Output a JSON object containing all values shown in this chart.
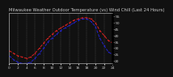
{
  "title": "Milwaukee Weather Outdoor Temperature (vs) Wind Chill (Last 24 Hours)",
  "fig_bg": "#111111",
  "plot_bg": "#111111",
  "grid_color": "#555555",
  "ylim": [
    18,
    58
  ],
  "yticks": [
    20,
    25,
    30,
    35,
    40,
    45,
    50,
    55
  ],
  "ytick_labels": [
    "20",
    "25",
    "30",
    "35",
    "40",
    "45",
    "50",
    "55"
  ],
  "hours": [
    0,
    1,
    2,
    3,
    4,
    5,
    6,
    7,
    8,
    9,
    10,
    11,
    12,
    13,
    14,
    15,
    16,
    17,
    18,
    19,
    20,
    21,
    22,
    23,
    24
  ],
  "temp": [
    28,
    26,
    24,
    23,
    22,
    23,
    26,
    30,
    34,
    38,
    41,
    44,
    46,
    48,
    50,
    52,
    53,
    54,
    54,
    53,
    50,
    44,
    40,
    36,
    34
  ],
  "wind_chill": [
    24,
    21,
    19,
    18,
    18,
    19,
    22,
    26,
    30,
    35,
    38,
    41,
    44,
    46,
    48,
    50,
    52,
    53,
    53,
    51,
    47,
    38,
    32,
    27,
    25
  ],
  "temp_color": "#dd2222",
  "wind_color": "#2222cc",
  "title_fontsize": 3.8,
  "tick_fontsize": 3.2,
  "linewidth": 0.7,
  "marker_size": 1.0,
  "xtick_step": 2
}
